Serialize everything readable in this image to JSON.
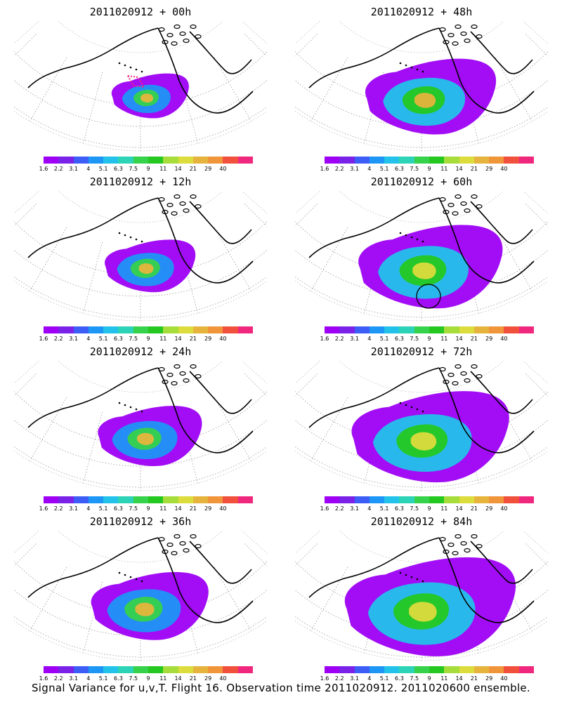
{
  "panels": [
    {
      "title": "2011020912 + 00h",
      "stage": 0
    },
    {
      "title": "2011020912 + 48h",
      "stage": 4
    },
    {
      "title": "2011020912 + 12h",
      "stage": 1
    },
    {
      "title": "2011020912 + 60h",
      "stage": 5
    },
    {
      "title": "2011020912 + 24h",
      "stage": 2
    },
    {
      "title": "2011020912 + 72h",
      "stage": 6
    },
    {
      "title": "2011020912 + 36h",
      "stage": 3
    },
    {
      "title": "2011020912 + 84h",
      "stage": 7
    }
  ],
  "colorbar": {
    "labels": [
      "1.6",
      "2.2",
      "3.1",
      "4",
      "5.1",
      "6.3",
      "7.5",
      "9",
      "11",
      "14",
      "21",
      "29",
      "40"
    ],
    "colors": [
      "#9d00f5",
      "#7a22e8",
      "#3d5ef6",
      "#1e96f5",
      "#23c2ea",
      "#2dd3b6",
      "#37d24b",
      "#24c820",
      "#a6dd3a",
      "#dcdc3c",
      "#e6b43c",
      "#f0953a",
      "#f0503c",
      "#f0287d"
    ]
  },
  "footer": "Signal Variance for u,v,T. Flight 16. Observation time 2011020912. 2011020600 ensemble."
}
